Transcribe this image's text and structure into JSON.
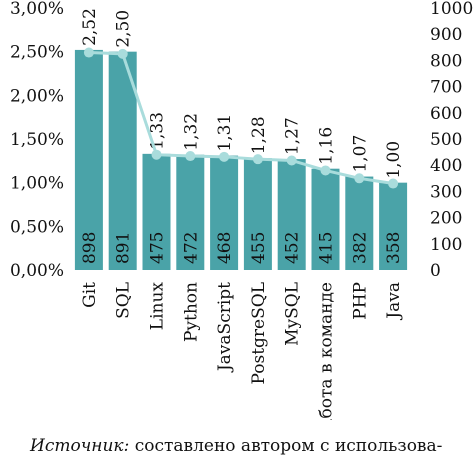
{
  "chart_data": {
    "type": "bar",
    "title": "",
    "categories": [
      "Git",
      "SQL",
      "Linux",
      "Python",
      "JavaScript",
      "PostgreSQL",
      "MySQL",
      "Работа в команде",
      "PHP",
      "Java"
    ],
    "series": [
      {
        "axis": "left",
        "type": "bar",
        "values": [
          2.52,
          2.5,
          1.33,
          1.32,
          1.31,
          1.28,
          1.27,
          1.16,
          1.07,
          1.0
        ],
        "value_labels": [
          "2,52",
          "2,50",
          "1,33",
          "1,32",
          "1,31",
          "1,28",
          "1,27",
          "1,16",
          "1,07",
          "1,00"
        ],
        "color": "#4aa3a8"
      },
      {
        "axis": "right",
        "type": "line",
        "values": [
          898,
          891,
          475,
          472,
          468,
          455,
          452,
          415,
          382,
          358
        ],
        "marker_values": [
          830,
          825,
          440,
          435,
          432,
          423,
          418,
          380,
          350,
          330
        ],
        "color": "#a9dcdc"
      }
    ],
    "left_axis": {
      "ticks": [
        "0,00%",
        "0,50%",
        "1,00%",
        "1,50%",
        "2,00%",
        "2,50%",
        "3,00%"
      ],
      "range": [
        0,
        3
      ]
    },
    "right_axis": {
      "ticks": [
        "0",
        "100",
        "200",
        "300",
        "400",
        "500",
        "600",
        "700",
        "800",
        "900",
        "1000"
      ],
      "range": [
        0,
        1000
      ]
    },
    "grid": false,
    "legend": "none"
  },
  "source": {
    "lead": "Источник:",
    "rest": " составлено автором с использова-"
  }
}
